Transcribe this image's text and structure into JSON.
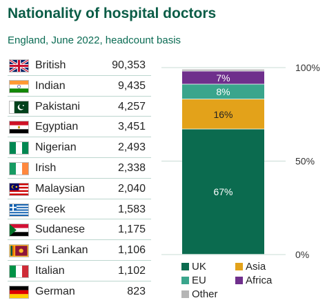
{
  "title": "Nationality of hospital doctors",
  "subtitle": "England, June 2022, headcount basis",
  "countries": [
    {
      "name": "British",
      "count": "90,353",
      "flag": "uk-flag-icon"
    },
    {
      "name": "Indian",
      "count": "9,435",
      "flag": "india-flag-icon"
    },
    {
      "name": "Pakistani",
      "count": "4,257",
      "flag": "pakistan-flag-icon"
    },
    {
      "name": "Egyptian",
      "count": "3,451",
      "flag": "egypt-flag-icon"
    },
    {
      "name": "Nigerian",
      "count": "2,493",
      "flag": "nigeria-flag-icon"
    },
    {
      "name": "Irish",
      "count": "2,338",
      "flag": "ireland-flag-icon"
    },
    {
      "name": "Malaysian",
      "count": "2,040",
      "flag": "malaysia-flag-icon"
    },
    {
      "name": "Greek",
      "count": "1,583",
      "flag": "greece-flag-icon"
    },
    {
      "name": "Sudanese",
      "count": "1,175",
      "flag": "sudan-flag-icon"
    },
    {
      "name": "Sri Lankan",
      "count": "1,106",
      "flag": "sri-lanka-flag-icon"
    },
    {
      "name": "Italian",
      "count": "1,102",
      "flag": "italy-flag-icon"
    },
    {
      "name": "German",
      "count": "823",
      "flag": "germany-flag-icon"
    }
  ],
  "chart_data": {
    "type": "bar",
    "stacked": true,
    "categories": [
      ""
    ],
    "series": [
      {
        "name": "UK",
        "values": [
          67
        ],
        "label": "67%",
        "color": "#0b6b4f"
      },
      {
        "name": "Asia",
        "values": [
          16
        ],
        "label": "16%",
        "color": "#e3a21a"
      },
      {
        "name": "EU",
        "values": [
          8
        ],
        "label": "8%",
        "color": "#3aa58c"
      },
      {
        "name": "Africa",
        "values": [
          7
        ],
        "label": "7%",
        "color": "#6f2f8c"
      },
      {
        "name": "Other",
        "values": [
          1
        ],
        "label": "",
        "color": "#b5b5b5"
      }
    ],
    "yticks": [
      "0%",
      "50%",
      "100%"
    ],
    "ylim": [
      0,
      100
    ],
    "legend": "bottom",
    "grid": true
  }
}
